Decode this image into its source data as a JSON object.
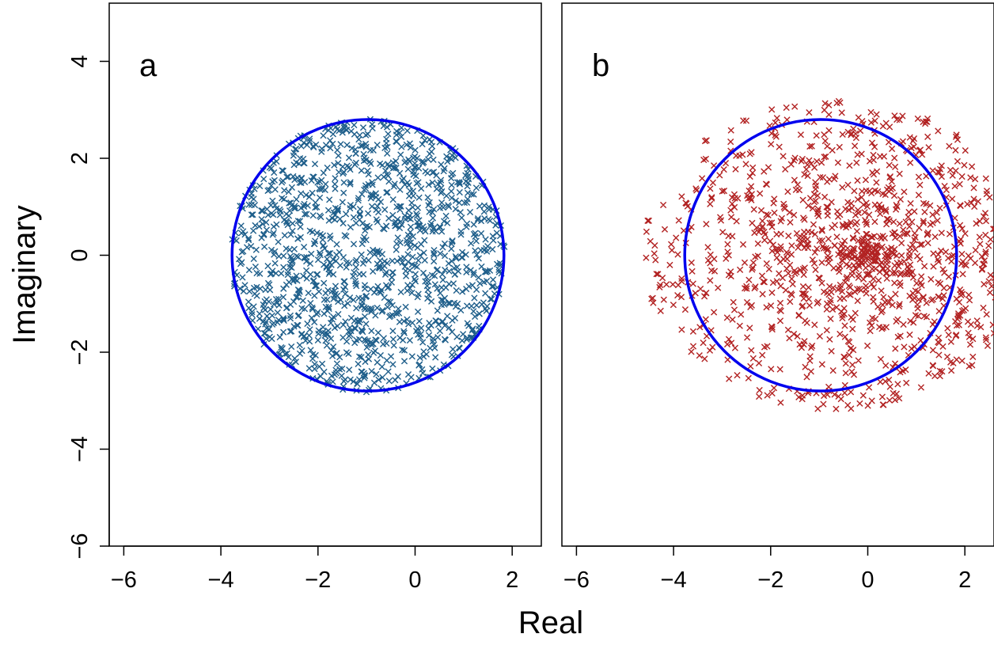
{
  "chart_data": [
    {
      "type": "scatter",
      "panel_label": "a",
      "xlabel": "Real",
      "ylabel": "Imaginary",
      "xlim": [
        -6.3,
        2.6
      ],
      "ylim": [
        -6.0,
        5.2
      ],
      "xticks": [
        -6,
        -4,
        -2,
        0,
        2
      ],
      "yticks": [
        -6,
        -4,
        -2,
        0,
        2,
        4
      ],
      "grid": false,
      "marker": "x",
      "point_color": "#1F5F8B",
      "point_count": 1300,
      "point_region": "uniform disk, center (-0.97, 0), radius 2.8, slight overshoot to 1.0",
      "circle": {
        "center": [
          -0.97,
          0
        ],
        "radius": 2.8,
        "color": "#0000EE"
      }
    },
    {
      "type": "scatter",
      "panel_label": "b",
      "xlabel": "Real",
      "ylabel": "Imaginary",
      "xlim": [
        -6.3,
        2.6
      ],
      "ylim": [
        -6.0,
        5.2
      ],
      "xticks": [
        -6,
        -4,
        -2,
        0,
        2
      ],
      "yticks": [
        -6,
        -4,
        -2,
        0,
        2,
        4
      ],
      "grid": false,
      "marker": "x",
      "point_color": "#B22222",
      "point_count": 1200,
      "point_region": "concentrated near (-0.05, 0), extending to about radius 4",
      "circle": {
        "center": [
          -0.97,
          0
        ],
        "radius": 2.8,
        "color": "#0000EE"
      }
    }
  ],
  "labels": {
    "x_title": "Real",
    "y_title": "Imaginary"
  }
}
